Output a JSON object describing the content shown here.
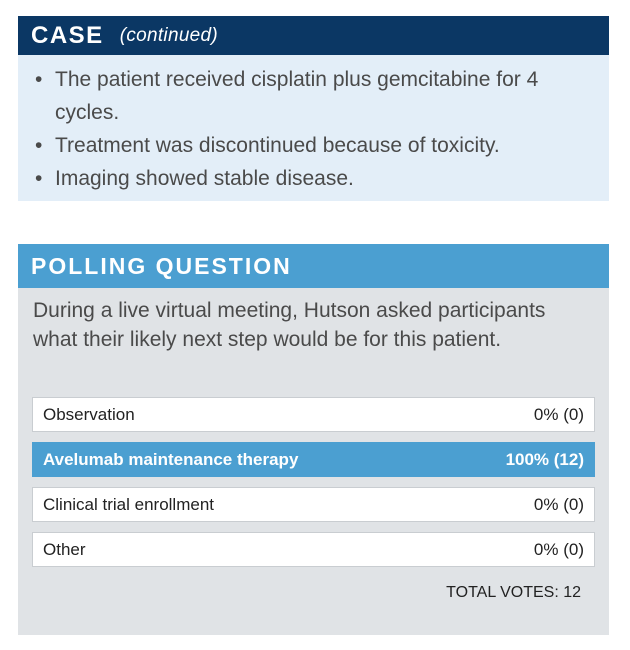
{
  "case": {
    "title": "CASE",
    "subtitle": "(continued)",
    "bullets": [
      "The patient received cisplatin plus gemcitabine for 4 cycles.",
      "Treatment was discontinued because of toxicity.",
      "Imaging showed stable disease."
    ]
  },
  "poll": {
    "title": "POLLING QUESTION",
    "question": "During a live virtual meeting, Hutson asked participants what their likely next step would be for this patient.",
    "options": [
      {
        "label": "Observation",
        "result": "0% (0)"
      },
      {
        "label": "Avelumab maintenance therapy",
        "result": "100% (12)"
      },
      {
        "label": "Clinical trial enrollment",
        "result": "0% (0)"
      },
      {
        "label": "Other",
        "result": "0% (0)"
      }
    ],
    "total_votes": "TOTAL VOTES: 12"
  },
  "colors": {
    "case_header": "#0b3764",
    "case_body": "#e3eef8",
    "poll_header": "#4b9fd1",
    "poll_body": "#e0e3e6",
    "selected_option": "#4b9fd1"
  }
}
